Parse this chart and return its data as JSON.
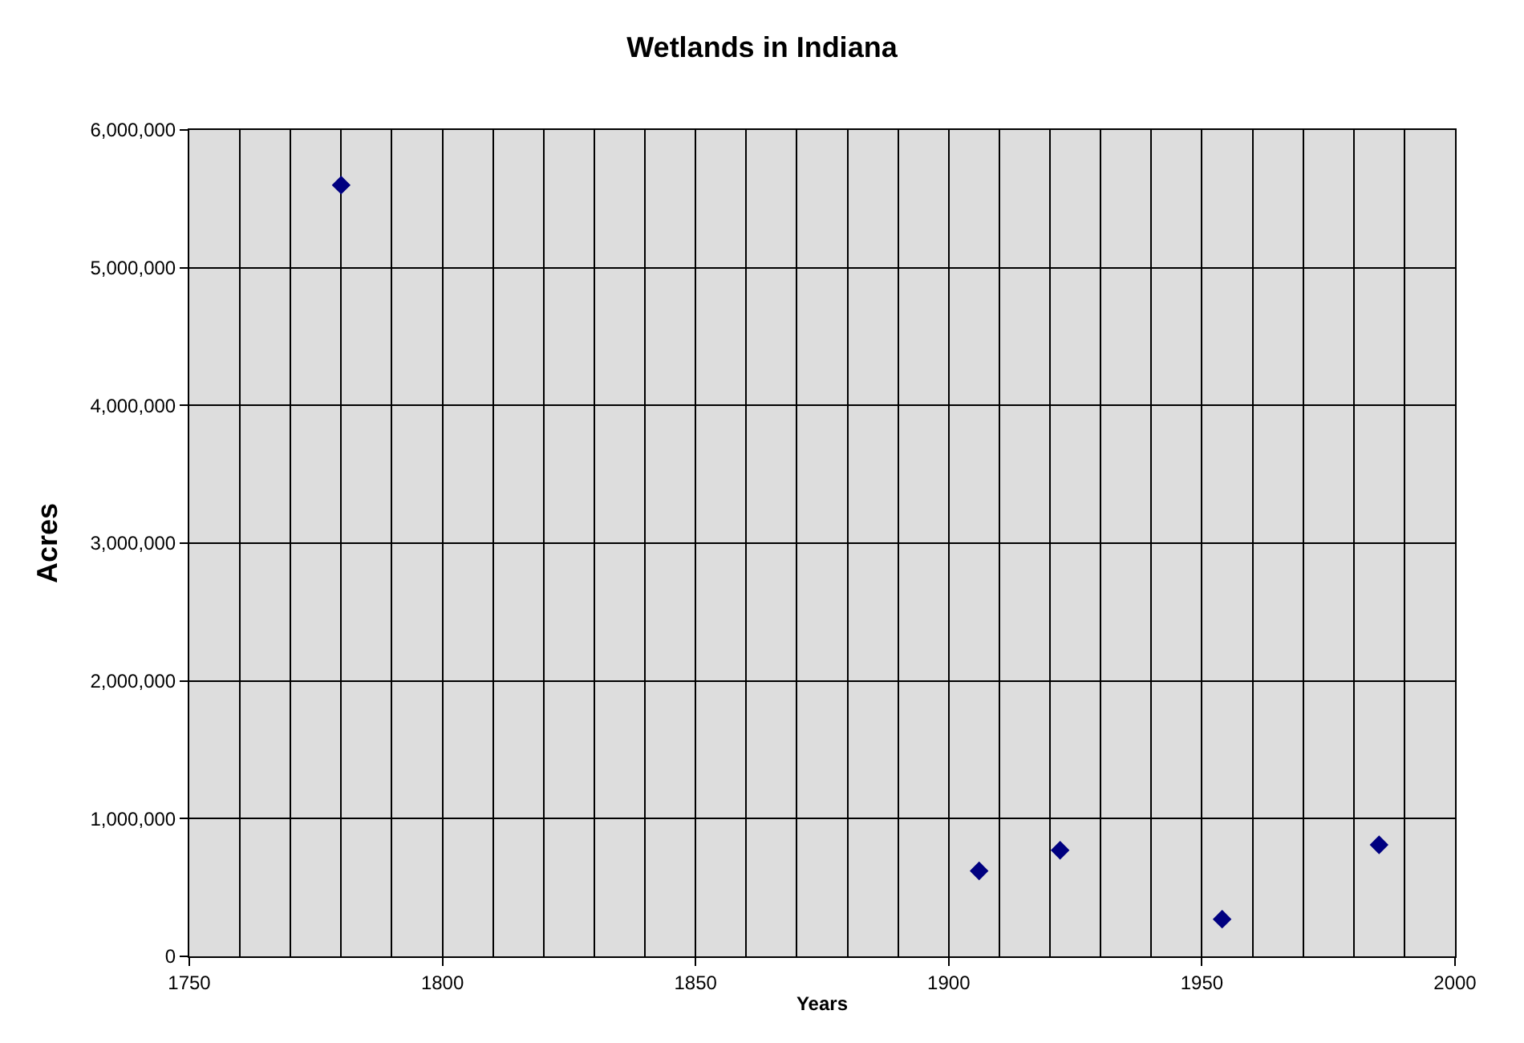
{
  "chart_data": {
    "type": "scatter",
    "title": "Wetlands in Indiana",
    "xlabel": "Years",
    "ylabel": "Acres",
    "x": [
      1780,
      1906,
      1922,
      1954,
      1985
    ],
    "series": [
      {
        "color": "#000080",
        "values": [
          5600000,
          620000,
          770000,
          270000,
          810000
        ]
      }
    ],
    "xlim": [
      1750,
      2000
    ],
    "xticks": [
      1750,
      {
        "value": 1760,
        "label": null
      },
      {
        "value": 1770,
        "label": null
      },
      {
        "value": 1780,
        "label": null
      },
      {
        "value": 1790,
        "label": null
      },
      1800,
      {
        "value": 1810,
        "label": null
      },
      {
        "value": 1820,
        "label": null
      },
      {
        "value": 1830,
        "label": null
      },
      {
        "value": 1840,
        "label": null
      },
      1850,
      {
        "value": 1860,
        "label": null
      },
      {
        "value": 1870,
        "label": null
      },
      {
        "value": 1880,
        "label": null
      },
      {
        "value": 1890,
        "label": null
      },
      1900,
      {
        "value": 1910,
        "label": null
      },
      {
        "value": 1920,
        "label": null
      },
      {
        "value": 1930,
        "label": null
      },
      {
        "value": 1940,
        "label": null
      },
      1950,
      {
        "value": 1960,
        "label": null
      },
      {
        "value": 1970,
        "label": null
      },
      {
        "value": 1980,
        "label": null
      },
      {
        "value": 1990,
        "label": null
      },
      2000
    ],
    "ylim": [
      0,
      6000000
    ],
    "yticks": [
      {
        "value": 0,
        "label": "0"
      },
      {
        "value": 1000000,
        "label": "1,000,000"
      },
      {
        "value": 2000000,
        "label": "2,000,000"
      },
      {
        "value": 3000000,
        "label": "3,000,000"
      },
      {
        "value": 4000000,
        "label": "4,000,000"
      },
      {
        "value": 5000000,
        "label": "5,000,000"
      },
      {
        "value": 6000000,
        "label": "6,000,000"
      }
    ],
    "grid": true,
    "marker": "diamond"
  }
}
